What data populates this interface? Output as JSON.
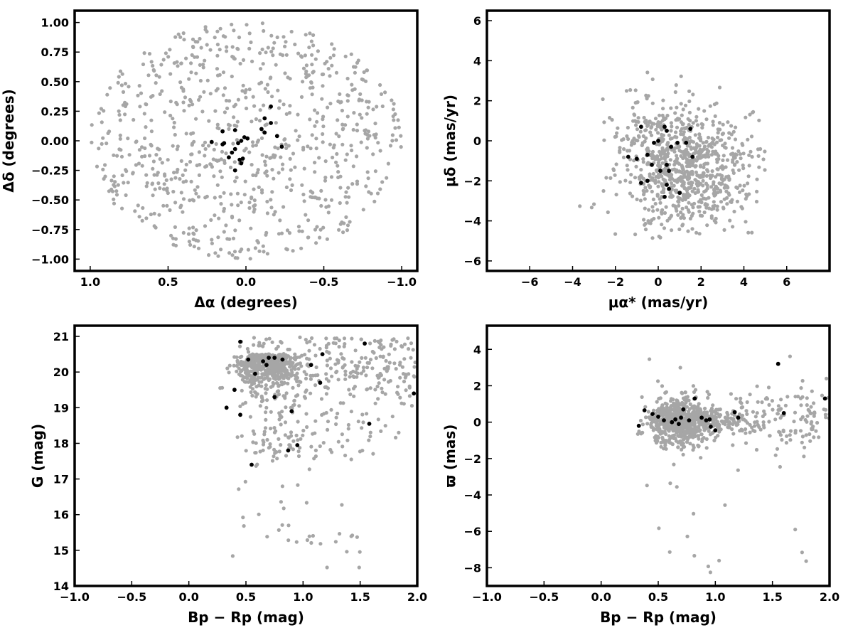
{
  "colors": {
    "field": "#a6a6a6",
    "members": "#000000",
    "frame": "#000000"
  },
  "chart_data": [
    {
      "type": "scatter",
      "xlabel": "Δα (degrees)",
      "ylabel": "Δδ (degrees)",
      "xlim": [
        1.1,
        -1.1
      ],
      "ylim": [
        -1.1,
        1.1
      ],
      "x_reversed": true,
      "xticks": [
        1.0,
        0.5,
        0.0,
        -0.5,
        -1.0
      ],
      "xtick_labels": [
        "1.0",
        "0.5",
        "0.0",
        "−0.5",
        "−1.0"
      ],
      "yticks": [
        -1.0,
        -0.75,
        -0.5,
        -0.25,
        0.0,
        0.25,
        0.5,
        0.75,
        1.0
      ],
      "ytick_labels": [
        "−1.00",
        "−0.75",
        "−0.50",
        "−0.25",
        "0.00",
        "0.25",
        "0.50",
        "0.75",
        "1.00"
      ],
      "field_description": "~800 grey field stars filling a circle of radius 1 degree",
      "members": [
        [
          0.22,
          -0.01
        ],
        [
          0.15,
          0.08
        ],
        [
          0.07,
          0.09
        ],
        [
          -0.12,
          0.19
        ],
        [
          -0.16,
          0.29
        ],
        [
          -0.2,
          0.04
        ],
        [
          -0.23,
          -0.05
        ],
        [
          -0.1,
          0.1
        ],
        [
          -0.12,
          0.07
        ],
        [
          0.01,
          0.03
        ],
        [
          0.03,
          0.0
        ],
        [
          -0.01,
          0.02
        ],
        [
          0.05,
          -0.02
        ],
        [
          0.07,
          -0.07
        ],
        [
          0.09,
          -0.1
        ],
        [
          0.11,
          -0.14
        ],
        [
          0.02,
          -0.15
        ],
        [
          0.04,
          -0.16
        ],
        [
          0.03,
          -0.19
        ],
        [
          0.07,
          -0.25
        ],
        [
          -0.16,
          0.15
        ],
        [
          0.14,
          -0.02
        ],
        [
          0.15,
          -0.03
        ]
      ]
    },
    {
      "type": "scatter",
      "xlabel": "μα* (mas/yr)",
      "ylabel": "μδ (mas/yr)",
      "xlim": [
        -8,
        8
      ],
      "ylim": [
        -6.5,
        6.5
      ],
      "xticks": [
        -6,
        -4,
        -2,
        0,
        2,
        4,
        6
      ],
      "xtick_labels": [
        "−6",
        "−4",
        "−2",
        "0",
        "2",
        "4",
        "6"
      ],
      "yticks": [
        -6,
        -4,
        -2,
        0,
        2,
        4,
        6
      ],
      "ytick_labels": [
        "−6",
        "−4",
        "−2",
        "0",
        "2",
        "4",
        "6"
      ],
      "field_description": "~900 grey field stars centred near (1.5, -1.5) mas/yr",
      "members": [
        [
          -0.8,
          0.7
        ],
        [
          0.3,
          0.7
        ],
        [
          0.4,
          0.5
        ],
        [
          0.9,
          -0.1
        ],
        [
          0.6,
          -0.3
        ],
        [
          0.0,
          0.0
        ],
        [
          -0.2,
          -0.1
        ],
        [
          -0.5,
          -0.7
        ],
        [
          -1.0,
          -0.9
        ],
        [
          -0.3,
          -1.2
        ],
        [
          0.4,
          -1.2
        ],
        [
          1.3,
          -0.1
        ],
        [
          1.5,
          0.6
        ],
        [
          1.6,
          -0.8
        ],
        [
          0.1,
          -1.5
        ],
        [
          0.5,
          -1.5
        ],
        [
          -0.8,
          -2.1
        ],
        [
          -0.5,
          -2.0
        ],
        [
          0.4,
          -2.2
        ],
        [
          0.5,
          -2.4
        ],
        [
          1.0,
          -2.6
        ],
        [
          0.3,
          -2.8
        ],
        [
          -1.4,
          -0.8
        ]
      ]
    },
    {
      "type": "scatter",
      "xlabel": "Bp − Rp (mag)",
      "ylabel": "G (mag)",
      "xlim": [
        -1.0,
        2.0
      ],
      "ylim": [
        14,
        21.3
      ],
      "xticks": [
        -1.0,
        -0.5,
        0.0,
        0.5,
        1.0,
        1.5,
        2.0
      ],
      "xtick_labels": [
        "−1.0",
        "−0.5",
        "0.0",
        "0.5",
        "1.0",
        "1.5",
        "2.0"
      ],
      "yticks": [
        14,
        15,
        16,
        17,
        18,
        19,
        20,
        21
      ],
      "ytick_labels": [
        "14",
        "15",
        "16",
        "17",
        "18",
        "19",
        "20",
        "21"
      ],
      "field_description": "~900 grey field stars concentrated near Bp-Rp 0.6-0.8, G 20-21",
      "members": [
        [
          0.45,
          20.85
        ],
        [
          0.52,
          20.35
        ],
        [
          0.65,
          20.3
        ],
        [
          0.68,
          20.2
        ],
        [
          0.7,
          20.4
        ],
        [
          0.75,
          20.4
        ],
        [
          0.82,
          20.35
        ],
        [
          0.58,
          19.95
        ],
        [
          0.4,
          19.5
        ],
        [
          0.33,
          19.0
        ],
        [
          0.75,
          19.3
        ],
        [
          0.45,
          18.8
        ],
        [
          0.9,
          18.9
        ],
        [
          1.17,
          20.5
        ],
        [
          1.07,
          20.2
        ],
        [
          1.15,
          19.7
        ],
        [
          1.54,
          20.8
        ],
        [
          1.97,
          19.4
        ],
        [
          0.95,
          17.95
        ],
        [
          0.87,
          17.8
        ],
        [
          1.58,
          18.55
        ],
        [
          0.55,
          17.4
        ]
      ]
    },
    {
      "type": "scatter",
      "xlabel": "Bp − Rp (mag)",
      "ylabel": "ϖ (mas)",
      "xlim": [
        -1.0,
        2.0
      ],
      "ylim": [
        -9,
        5.3
      ],
      "xticks": [
        -1.0,
        -0.5,
        0.0,
        0.5,
        1.0,
        1.5,
        2.0
      ],
      "xtick_labels": [
        "−1.0",
        "−0.5",
        "0.0",
        "0.5",
        "1.0",
        "1.5",
        "2.0"
      ],
      "yticks": [
        -8,
        -6,
        -4,
        -2,
        0,
        2,
        4
      ],
      "ytick_labels": [
        "−8",
        "−6",
        "−4",
        "−2",
        "0",
        "2",
        "4"
      ],
      "field_description": "~900 grey field stars clustered near parallax 0, spreading to the red",
      "members": [
        [
          0.33,
          -0.2
        ],
        [
          0.38,
          0.65
        ],
        [
          0.45,
          0.45
        ],
        [
          0.5,
          0.3
        ],
        [
          0.55,
          0.1
        ],
        [
          0.62,
          0.0
        ],
        [
          0.65,
          0.15
        ],
        [
          0.68,
          -0.1
        ],
        [
          0.7,
          0.25
        ],
        [
          0.72,
          0.7
        ],
        [
          0.77,
          0.1
        ],
        [
          0.82,
          1.3
        ],
        [
          0.88,
          0.25
        ],
        [
          0.92,
          0.1
        ],
        [
          0.95,
          0.15
        ],
        [
          0.96,
          -0.25
        ],
        [
          1.0,
          -0.45
        ],
        [
          1.17,
          0.55
        ],
        [
          1.2,
          0.25
        ],
        [
          1.55,
          3.2
        ],
        [
          1.6,
          0.5
        ],
        [
          1.96,
          1.3
        ]
      ]
    }
  ]
}
